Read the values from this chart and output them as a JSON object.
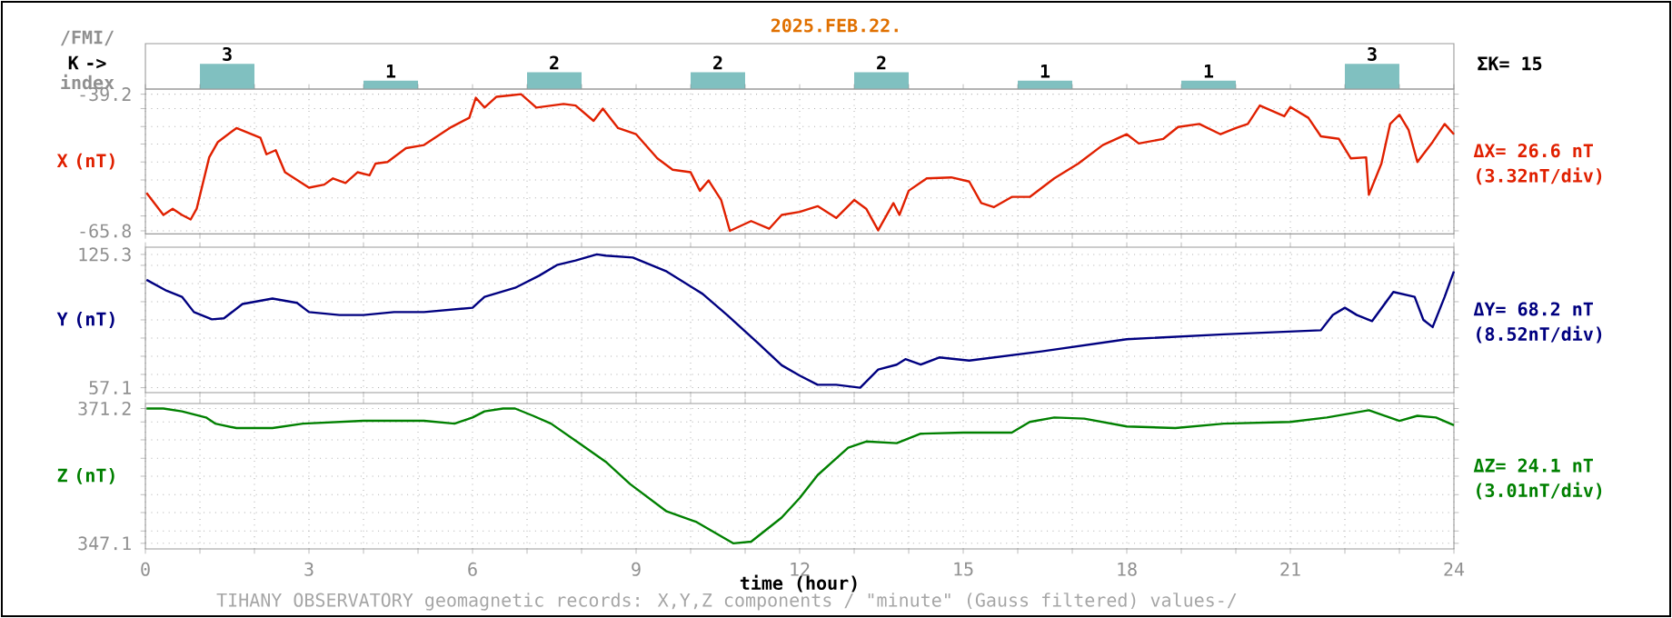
{
  "chart_data": [
    {
      "type": "bar",
      "title": "2025.FEB.22.",
      "ylabel": "K ->",
      "annotations": [
        "/FMI/",
        "index",
        "ΣK= 15"
      ],
      "categories": [
        null,
        null,
        null,
        null,
        null,
        null,
        null,
        null
      ],
      "values": [
        3,
        1,
        2,
        2,
        2,
        1,
        1,
        3
      ],
      "color": "#80c0c0",
      "data_labels": true,
      "tick_labels": false
    },
    {
      "type": "line",
      "ylabel": "X (nT)",
      "color": "#e02000",
      "grid": true,
      "tick_labels": "y",
      "annotations": [
        "ΔX= 26.6 nT",
        "(3.32nT/div)"
      ],
      "xlim": [
        0,
        24
      ],
      "ylim": [
        -66.4,
        -38.2
      ],
      "xticks": [
        0,
        {
          "value": 1,
          "label": null
        },
        {
          "value": 2,
          "label": null
        },
        3,
        {
          "value": 4,
          "label": null
        },
        {
          "value": 5,
          "label": null
        },
        6,
        {
          "value": 7,
          "label": null
        },
        {
          "value": 8,
          "label": null
        },
        9,
        {
          "value": 10,
          "label": null
        },
        {
          "value": 11,
          "label": null
        },
        12,
        {
          "value": 13,
          "label": null
        },
        {
          "value": 14,
          "label": null
        },
        15,
        {
          "value": 16,
          "label": null
        },
        {
          "value": 17,
          "label": null
        },
        18,
        {
          "value": 19,
          "label": null
        },
        {
          "value": 20,
          "label": null
        },
        21,
        {
          "value": 22,
          "label": null
        },
        {
          "value": 23,
          "label": null
        },
        24
      ],
      "yticks": [
        -65.8,
        {
          "value": -62.9,
          "label": null
        },
        {
          "value": -59.4,
          "label": null
        },
        {
          "value": -55.9,
          "label": null
        },
        {
          "value": -52.4,
          "label": null
        },
        {
          "value": -48.9,
          "label": null
        },
        {
          "value": -45.5,
          "label": null
        },
        {
          "value": -42.0,
          "label": null
        },
        -39.2
      ],
      "x": [
        0.02,
        0.33,
        0.5,
        0.67,
        0.83,
        0.94,
        1.17,
        1.33,
        1.67,
        2.11,
        2.22,
        2.39,
        2.56,
        3.0,
        3.28,
        3.44,
        3.67,
        3.89,
        4.11,
        4.22,
        4.44,
        4.78,
        5.11,
        5.61,
        5.94,
        6.06,
        6.22,
        6.44,
        6.72,
        6.89,
        7.17,
        7.67,
        7.89,
        8.22,
        8.39,
        8.67,
        9.0,
        9.39,
        9.67,
        10.0,
        10.17,
        10.33,
        10.56,
        10.72,
        11.11,
        11.44,
        11.67,
        12.0,
        12.33,
        12.67,
        13.0,
        13.22,
        13.44,
        13.72,
        13.83,
        14.0,
        14.33,
        14.78,
        15.11,
        15.33,
        15.56,
        15.89,
        16.22,
        16.67,
        17.11,
        17.56,
        18.0,
        18.22,
        18.67,
        18.94,
        19.33,
        19.72,
        20.0,
        20.22,
        20.44,
        20.89,
        21.0,
        21.33,
        21.56,
        21.89,
        22.11,
        22.39,
        22.44,
        22.67,
        22.83,
        23.0,
        23.17,
        23.33,
        23.61,
        23.83,
        24.0
      ],
      "values": [
        -58.4,
        -62.7,
        -61.5,
        -62.7,
        -63.6,
        -61.5,
        -51.5,
        -48.5,
        -45.8,
        -47.7,
        -50.9,
        -50.1,
        -54.4,
        -57.4,
        -56.8,
        -55.6,
        -56.5,
        -54.4,
        -55.0,
        -52.7,
        -52.4,
        -49.7,
        -49.1,
        -45.6,
        -43.8,
        -39.9,
        -41.8,
        -39.7,
        -39.4,
        -39.2,
        -41.8,
        -41.1,
        -41.4,
        -44.4,
        -42.0,
        -45.8,
        -47.0,
        -51.7,
        -53.9,
        -54.4,
        -58.0,
        -56.0,
        -59.8,
        -65.8,
        -63.9,
        -65.4,
        -62.7,
        -62.1,
        -61.0,
        -63.3,
        -59.8,
        -61.5,
        -65.7,
        -60.4,
        -62.7,
        -58.0,
        -55.6,
        -55.4,
        -56.2,
        -60.4,
        -61.2,
        -59.2,
        -59.2,
        -55.6,
        -52.7,
        -49.1,
        -47.0,
        -48.8,
        -47.9,
        -45.6,
        -45.0,
        -47.0,
        -45.8,
        -45.0,
        -41.4,
        -43.5,
        -41.7,
        -43.8,
        -47.4,
        -47.9,
        -51.7,
        -51.5,
        -58.8,
        -52.7,
        -45.0,
        -43.2,
        -46.2,
        -52.4,
        -48.5,
        -45.0,
        -47.0
      ]
    },
    {
      "type": "line",
      "ylabel": "Y (nT)",
      "color": "#000080",
      "grid": true,
      "tick_labels": "y",
      "annotations": [
        "ΔY= 68.2 nT",
        "(8.52nT/div)"
      ],
      "xlim": [
        0,
        24
      ],
      "ylim": [
        54.6,
        129.0
      ],
      "xticks": [
        0,
        {
          "value": 1,
          "label": null
        },
        {
          "value": 2,
          "label": null
        },
        3,
        {
          "value": 4,
          "label": null
        },
        {
          "value": 5,
          "label": null
        },
        6,
        {
          "value": 7,
          "label": null
        },
        {
          "value": 8,
          "label": null
        },
        9,
        {
          "value": 10,
          "label": null
        },
        {
          "value": 11,
          "label": null
        },
        12,
        {
          "value": 13,
          "label": null
        },
        {
          "value": 14,
          "label": null
        },
        15,
        {
          "value": 16,
          "label": null
        },
        {
          "value": 17,
          "label": null
        },
        18,
        {
          "value": 19,
          "label": null
        },
        {
          "value": 20,
          "label": null
        },
        21,
        {
          "value": 22,
          "label": null
        },
        {
          "value": 23,
          "label": null
        },
        24
      ],
      "yticks": [
        57.1,
        {
          "value": 63.9,
          "label": null
        },
        {
          "value": 73.2,
          "label": null
        },
        {
          "value": 82.5,
          "label": null
        },
        {
          "value": 91.8,
          "label": null
        },
        {
          "value": 101.1,
          "label": null
        },
        {
          "value": 110.4,
          "label": null
        },
        {
          "value": 119.7,
          "label": null
        },
        125.3
      ],
      "x": [
        0.02,
        0.39,
        0.67,
        0.89,
        1.22,
        1.44,
        1.78,
        2.33,
        2.78,
        3.0,
        3.56,
        4.0,
        4.56,
        5.11,
        6.0,
        6.22,
        6.78,
        7.22,
        7.56,
        7.89,
        8.28,
        8.44,
        8.94,
        9.56,
        10.22,
        10.67,
        11.22,
        11.67,
        12.0,
        12.33,
        12.67,
        13.11,
        13.44,
        13.78,
        13.94,
        14.22,
        14.56,
        15.11,
        16.44,
        18.0,
        19.78,
        21.56,
        21.78,
        22.0,
        22.22,
        22.5,
        22.89,
        23.28,
        23.44,
        23.61,
        23.83,
        24.0
      ],
      "values": [
        112.3,
        106.7,
        103.6,
        95.8,
        92.1,
        92.6,
        99.9,
        102.7,
        100.5,
        95.8,
        94.3,
        94.3,
        95.8,
        95.8,
        98.0,
        103.6,
        108.2,
        114.4,
        120.0,
        122.2,
        125.3,
        124.7,
        123.7,
        116.6,
        105.1,
        94.3,
        80.3,
        68.6,
        63.3,
        58.6,
        58.6,
        57.1,
        66.4,
        68.9,
        71.7,
        68.9,
        72.6,
        71.0,
        75.7,
        81.9,
        84.4,
        86.5,
        94.3,
        98.0,
        94.3,
        91.2,
        106.1,
        103.6,
        91.8,
        88.1,
        103.6,
        116.6
      ]
    },
    {
      "type": "line",
      "ylabel": "Z (nT)",
      "xlabel": "time (hour)",
      "color": "#008000",
      "grid": true,
      "annotations": [
        "ΔZ= 24.1 nT",
        "(3.01nT/div)",
        "TIHANY OBSERVATORY   geomagnetic records:  X,Y,Z  components   / \"minute\" (Gauss filtered) values-/"
      ],
      "xlim": [
        0,
        24
      ],
      "ylim": [
        346.1,
        372.1
      ],
      "xticks": [
        0,
        {
          "value": 1,
          "label": null
        },
        {
          "value": 2,
          "label": null
        },
        3,
        {
          "value": 4,
          "label": null
        },
        {
          "value": 5,
          "label": null
        },
        6,
        {
          "value": 7,
          "label": null
        },
        {
          "value": 8,
          "label": null
        },
        9,
        {
          "value": 10,
          "label": null
        },
        {
          "value": 11,
          "label": null
        },
        12,
        {
          "value": 13,
          "label": null
        },
        {
          "value": 14,
          "label": null
        },
        15,
        {
          "value": 16,
          "label": null
        },
        {
          "value": 17,
          "label": null
        },
        18,
        {
          "value": 19,
          "label": null
        },
        {
          "value": 20,
          "label": null
        },
        21,
        {
          "value": 22,
          "label": null
        },
        {
          "value": 23,
          "label": null
        },
        24
      ],
      "yticks": [
        347.1,
        {
          "value": 349.3,
          "label": null
        },
        {
          "value": 352.6,
          "label": null
        },
        {
          "value": 355.8,
          "label": null
        },
        {
          "value": 359.1,
          "label": null
        },
        {
          "value": 362.3,
          "label": null
        },
        {
          "value": 365.6,
          "label": null
        },
        {
          "value": 368.8,
          "label": null
        },
        371.2
      ],
      "x": [
        0.02,
        0.33,
        0.67,
        1.11,
        1.28,
        1.67,
        2.33,
        2.89,
        4.0,
        5.11,
        5.67,
        6.0,
        6.22,
        6.56,
        6.78,
        7.11,
        7.44,
        8.0,
        8.44,
        8.89,
        9.56,
        10.11,
        10.78,
        11.11,
        11.67,
        12.0,
        12.33,
        12.89,
        13.22,
        13.78,
        14.22,
        15.0,
        15.89,
        16.22,
        16.67,
        17.22,
        18.0,
        18.89,
        19.78,
        21.0,
        21.67,
        22.44,
        23.0,
        23.33,
        23.67,
        24.0
      ],
      "values": [
        371.2,
        371.2,
        370.7,
        369.6,
        368.5,
        367.7,
        367.7,
        368.5,
        369.0,
        369.0,
        368.5,
        369.6,
        370.7,
        371.2,
        371.2,
        369.9,
        368.5,
        364.7,
        361.7,
        357.7,
        352.8,
        350.9,
        347.1,
        347.4,
        351.7,
        355.2,
        359.3,
        364.2,
        365.3,
        365.0,
        366.7,
        366.9,
        366.9,
        368.8,
        369.6,
        369.4,
        368.0,
        367.7,
        368.5,
        368.8,
        369.6,
        370.9,
        369.0,
        369.9,
        369.6,
        368.2
      ]
    }
  ]
}
